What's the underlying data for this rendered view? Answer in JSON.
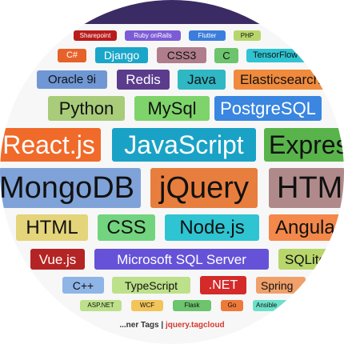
{
  "tags": [
    {
      "text": "Sharepoint",
      "color": "#b91c1c"
    },
    {
      "text": "Ruby onRails",
      "color": "#7c5cd6"
    },
    {
      "text": "Flutter",
      "color": "#3b7ddd"
    },
    {
      "text": "PHP",
      "color": "#b7d66a"
    },
    {
      "text": "C#",
      "color": "#e7622a"
    },
    {
      "text": "Django",
      "color": "#1aa6c9"
    },
    {
      "text": "CSS3",
      "color": "#b07d8c"
    },
    {
      "text": "C",
      "color": "#6cc46c"
    },
    {
      "text": "TensorFlow",
      "color": "#2fc4d2"
    },
    {
      "text": "Oracle 9i",
      "color": "#6f97d4"
    },
    {
      "text": "Redis",
      "color": "#5b3b8c"
    },
    {
      "text": "Java",
      "color": "#2fb7c4"
    },
    {
      "text": "Elasticsearch",
      "color": "#f08a3c"
    },
    {
      "text": "Python",
      "color": "#a8cc7a"
    },
    {
      "text": "MySql",
      "color": "#7ed46a"
    },
    {
      "text": "PostgreSQL",
      "color": "#3a86e0"
    },
    {
      "text": "React.js",
      "color": "#f06a2a"
    },
    {
      "text": "JavaScript",
      "color": "#1aa2c6"
    },
    {
      "text": "Express",
      "color": "#58b44a"
    },
    {
      "text": "MongoDB",
      "color": "#7fa2d8"
    },
    {
      "text": "jQuery",
      "color": "#e87e3e"
    },
    {
      "text": "HTML",
      "color": "#b08a8a"
    },
    {
      "text": "HTML",
      "color": "#e4d47a"
    },
    {
      "text": "CSS",
      "color": "#72d47e"
    },
    {
      "text": "Node.js",
      "color": "#2fc4d2"
    },
    {
      "text": "Angular",
      "color": "#f3884a"
    },
    {
      "text": "Vue.js",
      "color": "#b52424"
    },
    {
      "text": "Microsoft SQL Server",
      "color": "#6652d8"
    },
    {
      "text": "SQLite",
      "color": "#b8d66a"
    },
    {
      "text": "C++",
      "color": "#8fb4e6"
    },
    {
      "text": "TypeScript",
      "color": "#bde08a"
    },
    {
      "text": ".NET",
      "color": "#d42a2a"
    },
    {
      "text": "Spring",
      "color": "#f0a06a"
    },
    {
      "text": "ASP.NET",
      "color": "#bde08a"
    },
    {
      "text": "WCF",
      "color": "#f2c45a"
    },
    {
      "text": "Flask",
      "color": "#6cc46c"
    },
    {
      "text": "Go",
      "color": "#ee7a3a"
    },
    {
      "text": "Ansible",
      "color": "#6de0c8"
    }
  ],
  "footer": {
    "prefix": "...ner Tags | ",
    "link": "jquery.tagcloud"
  }
}
